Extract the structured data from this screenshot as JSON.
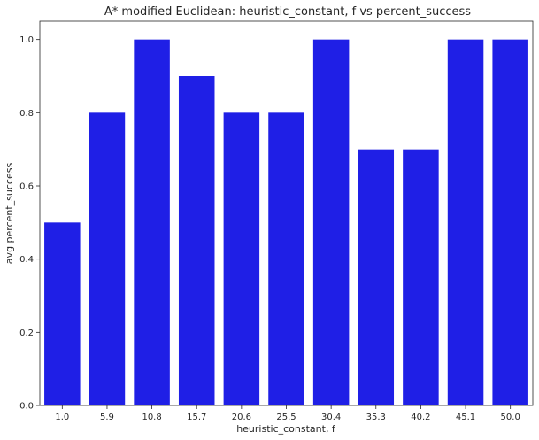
{
  "chart_data": {
    "type": "bar",
    "title": "A* modified Euclidean: heuristic_constant, f vs percent_success",
    "xlabel": "heuristic_constant, f",
    "ylabel": "avg percent_success",
    "categories": [
      "1.0",
      "5.9",
      "10.8",
      "15.7",
      "20.6",
      "25.5",
      "30.4",
      "35.3",
      "40.2",
      "45.1",
      "50.0"
    ],
    "values": [
      0.5,
      0.8,
      1.0,
      0.9,
      0.8,
      0.8,
      1.0,
      0.7,
      0.7,
      1.0,
      1.0
    ],
    "ylim": [
      0,
      1.05
    ],
    "yticks": [
      "0.0",
      "0.2",
      "0.4",
      "0.6",
      "0.8",
      "1.0"
    ],
    "bar_color": "#1f1fe6",
    "grid": false,
    "legend": "none"
  }
}
